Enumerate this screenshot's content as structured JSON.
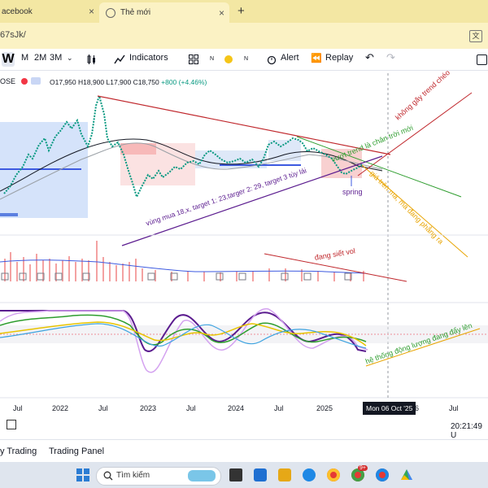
{
  "browser": {
    "tabs": [
      {
        "title": "acebook"
      },
      {
        "title": "Thẻ mới"
      }
    ],
    "new_tab": "+",
    "close": "×",
    "url": "67sJk/",
    "translate": "文"
  },
  "toolbar": {
    "intervals": [
      "W",
      "M",
      "2M",
      "3M"
    ],
    "indicators_label": "Indicators",
    "n1": "N",
    "n2": "N",
    "n3": "N",
    "alert_label": "Alert",
    "replay_label": "Replay"
  },
  "symbol": {
    "name": "OSE",
    "open": "O17,950",
    "high": "H18,900",
    "low": "L17,900",
    "close": "C18,750",
    "change": "+800 (+4.46%)"
  },
  "annotations": {
    "trend_break": "không gãy trend chéo",
    "cross_trend": "vượt trend là chân trời mới",
    "above_ma": "giá trên ma, ma đang phẳng ra",
    "spring": "spring",
    "buy_zone": "vùng mua 18,x, target 1: 23,targer 2: 29, target 3 tùy lái",
    "vol_squeeze": "đang siết vol",
    "momentum": "hệ thống động lượng đang đẩy lên"
  },
  "time_axis": {
    "labels": [
      "Jul",
      "2022",
      "Jul",
      "2023",
      "Jul",
      "2024",
      "Jul",
      "2025",
      "Jul"
    ],
    "cursor": "Mon 06 Oct '25",
    "cursor_suffix": "6",
    "clock": "20:21:49 U"
  },
  "bottom_panel": {
    "trading": "y Trading",
    "panel": "Trading Panel"
  },
  "taskbar": {
    "search_placeholder": "Tìm kiếm",
    "badge": "9+"
  },
  "colors": {
    "up": "#089981",
    "down": "#f23645",
    "annotation_red": "#c0282d",
    "annotation_green": "#2e9d2e",
    "annotation_orange": "#e8a400",
    "annotation_purple": "#5b1c8f"
  }
}
